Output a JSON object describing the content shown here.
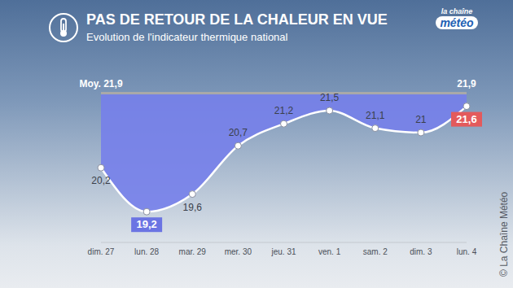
{
  "chart_data": {
    "type": "line",
    "title": "PAS DE RETOUR DE LA CHALEUR EN VUE",
    "subtitle": "Evolution de l'indicateur thermique national",
    "logo": [
      "la chaîne",
      "météo"
    ],
    "credit": "© La Chaîne Météo",
    "categories": [
      "dim. 27",
      "lun. 28",
      "mar. 29",
      "mer. 30",
      "jeu. 31",
      "ven. 1",
      "sam. 2",
      "dim. 3",
      "lun. 4"
    ],
    "series": [
      {
        "values": [
          20.2,
          19.2,
          19.6,
          20.7,
          21.2,
          21.5,
          21.1,
          21,
          21.6
        ],
        "value_labels": [
          "20,2",
          "19,2",
          "19,6",
          "20,7",
          "21,2",
          "21,5",
          "21,1",
          "21",
          "21,6"
        ],
        "color": "#ffffff",
        "marker": "circle"
      },
      {
        "values": [
          21.9,
          21.9,
          21.9,
          21.9,
          21.9,
          21.9,
          21.9,
          21.9,
          21.9
        ],
        "value_labels": [
          "Moy. 21,9",
          null,
          null,
          null,
          null,
          null,
          null,
          null,
          "21,9"
        ],
        "color": "#a9a9a9"
      }
    ],
    "ylim": [
      18.5,
      22.5
    ],
    "grid": false,
    "tick_labels": "x",
    "data_labels": true
  }
}
